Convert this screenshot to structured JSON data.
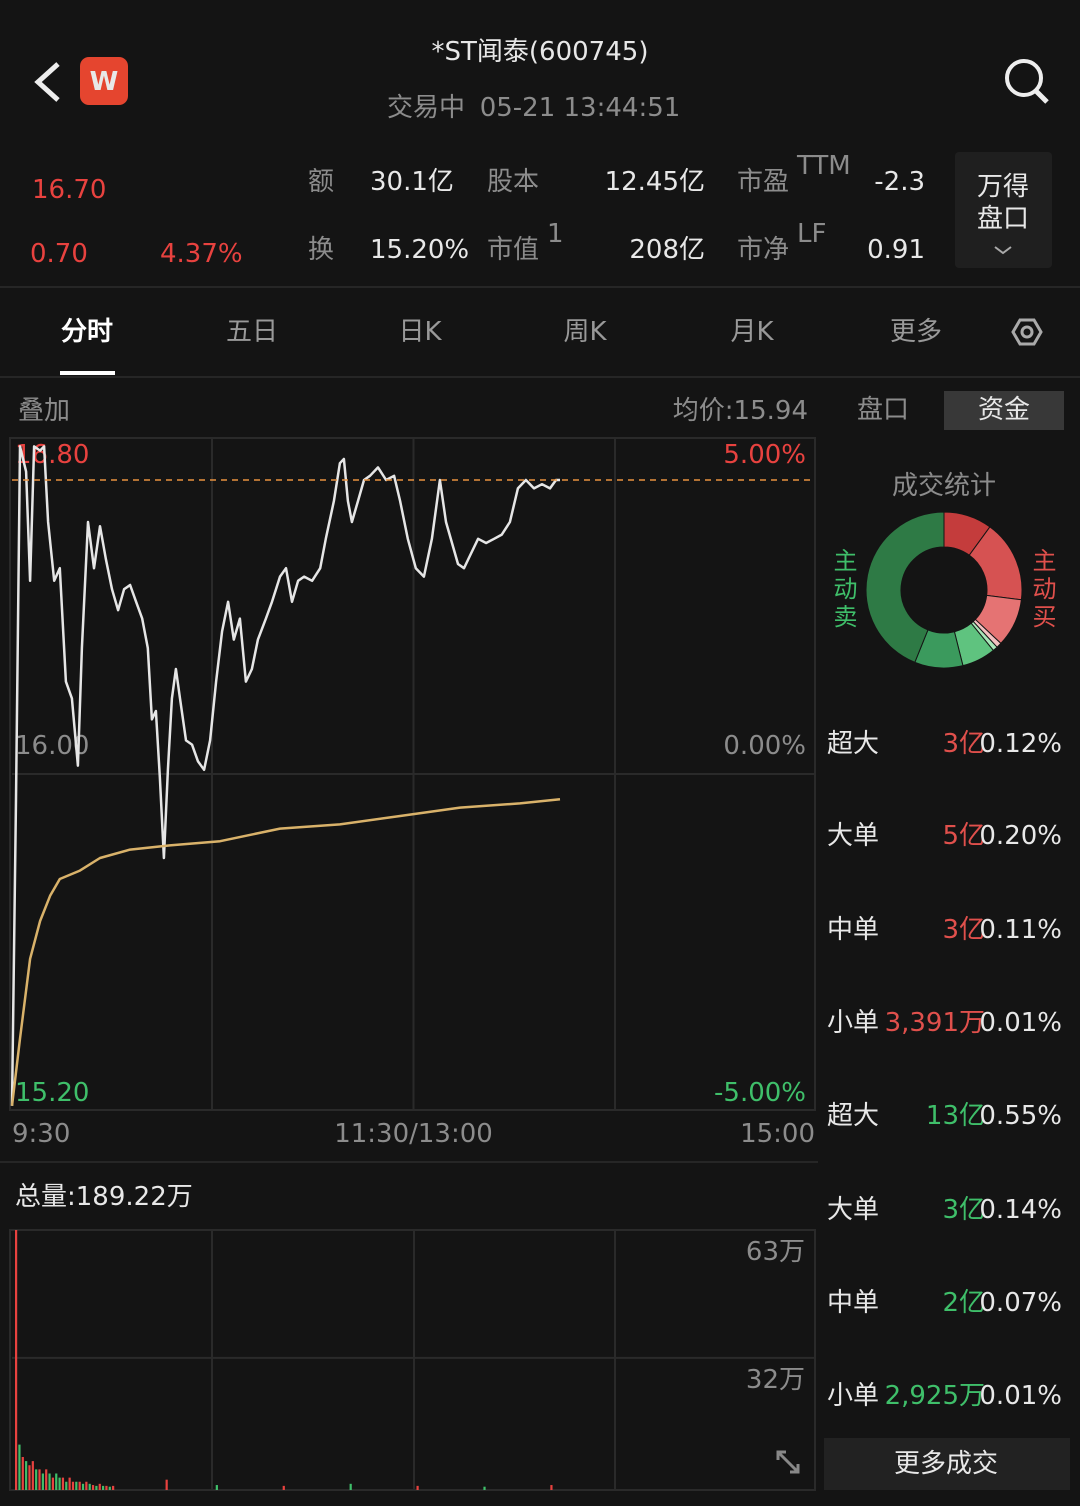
{
  "header": {
    "logo": "W",
    "title": "*ST闻泰(600745)",
    "status": "交易中",
    "time": "05-21 13:44:51"
  },
  "quote": {
    "price": "16.70",
    "change": "0.70",
    "change_pct": "4.37%",
    "stats": [
      {
        "label": "额",
        "value": "30.1亿"
      },
      {
        "label": "股本",
        "value": "12.45亿"
      },
      {
        "label": "市盈",
        "sup": "TTM",
        "value": "-2.3"
      },
      {
        "label": "换",
        "value": "15.20%"
      },
      {
        "label": "市值",
        "sup": "1",
        "value": "208亿"
      },
      {
        "label": "市净",
        "sup": "LF",
        "value": "0.91"
      }
    ],
    "wind_button": [
      "万得",
      "盘口"
    ]
  },
  "tabs": [
    "分时",
    "五日",
    "日K",
    "周K",
    "月K",
    "更多"
  ],
  "intraday": {
    "overlay": "叠加",
    "avg_label": "均价:15.94",
    "xlim": [
      0,
      240
    ],
    "ylim": [
      15.2,
      16.8
    ],
    "yticks": [
      {
        "value": 16.8,
        "label": "16.80"
      },
      {
        "value": 16,
        "label": "16.00"
      },
      {
        "value": 15.2,
        "label": "15.20"
      }
    ],
    "pct_labels": [
      "5.00%",
      "0.00%",
      "-5.00%"
    ],
    "xticks": [
      {
        "value": 0,
        "label": "9:30"
      },
      {
        "value": 120,
        "label": "11:30/13:00"
      },
      {
        "value": 240,
        "label": "15:00"
      }
    ],
    "series": [
      {
        "name": "price",
        "color": "#e6e6e6",
        "x": [
          0,
          1.2,
          2.4,
          4.2,
          5.4,
          6.6,
          8.4,
          9.6,
          10.8,
          12.6,
          14.3,
          16.1,
          17.9,
          19.7,
          20.9,
          22.7,
          24.5,
          26.3,
          28.1,
          29.9,
          31.7,
          33.5,
          35.3,
          37.1,
          38.9,
          40.6,
          41.8,
          43.0,
          44.2,
          45.4,
          46.6,
          47.8,
          49.0,
          50.2,
          52.0,
          53.8,
          55.6,
          57.4,
          59.2,
          61.0,
          62.8,
          64.6,
          66.3,
          68.1,
          69.9,
          71.7,
          73.5,
          75.9,
          77.7,
          80.1,
          81.9,
          83.7,
          85.5,
          87.3,
          89.7,
          92.1,
          93.8,
          96.2,
          98.0,
          99.2,
          100.4,
          101.6,
          103.4,
          105.2,
          107.0,
          109.4,
          111.8,
          114.2,
          116.0,
          118.3,
          120.7,
          123.1,
          125.5,
          127.9,
          129.7,
          131.5,
          133.3,
          135.1,
          136.9,
          139.3,
          141.7,
          144.1,
          146.4,
          148.8,
          151.2,
          153.6,
          156.0,
          158.4,
          160.8,
          162.6,
          163.8
        ],
        "values": [
          15.21,
          15.94,
          16.78,
          16.72,
          16.46,
          16.78,
          16.77,
          16.78,
          16.6,
          16.46,
          16.49,
          16.22,
          16.18,
          16.02,
          16.3,
          16.6,
          16.49,
          16.59,
          16.51,
          16.44,
          16.39,
          16.44,
          16.45,
          16.41,
          16.37,
          16.3,
          16.13,
          16.15,
          15.99,
          15.8,
          16.01,
          16.18,
          16.25,
          16.18,
          16.08,
          16.07,
          16.03,
          16.01,
          16.08,
          16.22,
          16.34,
          16.41,
          16.32,
          16.37,
          16.22,
          16.25,
          16.32,
          16.37,
          16.41,
          16.47,
          16.49,
          16.41,
          16.46,
          16.47,
          16.46,
          16.49,
          16.56,
          16.65,
          16.74,
          16.75,
          16.65,
          16.6,
          16.65,
          16.7,
          16.71,
          16.73,
          16.7,
          16.71,
          16.65,
          16.56,
          16.49,
          16.47,
          16.56,
          16.7,
          16.6,
          16.55,
          16.5,
          16.49,
          16.52,
          16.56,
          16.55,
          16.56,
          16.57,
          16.6,
          16.68,
          16.7,
          16.68,
          16.69,
          16.68,
          16.7,
          16.7
        ]
      },
      {
        "name": "avg",
        "color": "#d9b26a",
        "x": [
          0,
          2.4,
          5.4,
          8.4,
          11.4,
          14.3,
          20.3,
          26.3,
          35.3,
          47.2,
          62.2,
          80.1,
          98.0,
          116.0,
          133.9,
          151.8,
          163.8
        ],
        "values": [
          15.21,
          15.37,
          15.56,
          15.65,
          15.71,
          15.75,
          15.77,
          15.8,
          15.82,
          15.83,
          15.84,
          15.87,
          15.88,
          15.9,
          15.92,
          15.93,
          15.94
        ]
      }
    ]
  },
  "volume": {
    "total": "总量:189.22万",
    "ylim": [
      0,
      63
    ],
    "yticks": [
      {
        "value": 63,
        "label": "63万"
      },
      {
        "value": 32,
        "label": "32万"
      }
    ],
    "x": [
      0,
      1,
      2,
      3,
      4,
      5,
      6,
      7,
      8,
      9,
      10,
      11,
      12,
      13,
      14,
      15,
      16,
      17,
      18,
      19,
      20,
      21,
      22,
      23,
      24,
      25,
      26,
      27,
      28,
      29,
      45,
      60,
      80,
      100,
      120,
      140,
      160
    ],
    "values": [
      63,
      11,
      8,
      7,
      6,
      7,
      5,
      5,
      4,
      5,
      4,
      3,
      4,
      3,
      3,
      2,
      3,
      2,
      2,
      2,
      1.5,
      2,
      1.5,
      1.2,
      1,
      1.5,
      1,
      1,
      0.8,
      1,
      2.5,
      1.2,
      1,
      1.5,
      1,
      0.8,
      1.2
    ],
    "colors": [
      "#e8423f",
      "#3fbf6a",
      "#e8423f",
      "#3fbf6a",
      "#e8423f",
      "#e8423f",
      "#3fbf6a",
      "#e8423f",
      "#3fbf6a",
      "#e8423f",
      "#3fbf6a",
      "#e8423f",
      "#3fbf6a",
      "#3fbf6a",
      "#e8423f",
      "#3fbf6a",
      "#e8423f",
      "#e8423f",
      "#3fbf6a",
      "#e8423f",
      "#3fbf6a",
      "#e8423f",
      "#3fbf6a",
      "#e8423f",
      "#3fbf6a",
      "#e8423f",
      "#3fbf6a",
      "#e8423f",
      "#3fbf6a",
      "#e8423f",
      "#e8423f",
      "#3fbf6a",
      "#e8423f",
      "#3fbf6a",
      "#e8423f",
      "#3fbf6a",
      "#e8423f"
    ]
  },
  "side": {
    "tabs": [
      "盘口",
      "资金"
    ],
    "title": "成交统计",
    "sell_label": "主动卖",
    "buy_label": "主动买",
    "donut": [
      {
        "value": 10,
        "color": "#c43c3c"
      },
      {
        "value": 17,
        "color": "#d65252"
      },
      {
        "value": 10,
        "color": "#e57373"
      },
      {
        "value": 1.1,
        "color": "#f2c0c0"
      },
      {
        "value": 1,
        "color": "#a8e6b8"
      },
      {
        "value": 7,
        "color": "#5fc37f"
      },
      {
        "value": 10,
        "color": "#3b9a5d"
      },
      {
        "value": 43.9,
        "color": "#2e7a45"
      }
    ],
    "rows": [
      {
        "label": "超大",
        "amount": "3亿",
        "pct": "0.12%",
        "color": "#e0504c"
      },
      {
        "label": "大单",
        "amount": "5亿",
        "pct": "0.20%",
        "color": "#e0504c"
      },
      {
        "label": "中单",
        "amount": "3亿",
        "pct": "0.11%",
        "color": "#e0504c"
      },
      {
        "label": "小单",
        "amount": "3,391万",
        "pct": "0.01%",
        "color": "#e0504c"
      },
      {
        "label": "超大",
        "amount": "13亿",
        "pct": "0.55%",
        "color": "#3fbf6a"
      },
      {
        "label": "大单",
        "amount": "3亿",
        "pct": "0.14%",
        "color": "#3fbf6a"
      },
      {
        "label": "中单",
        "amount": "2亿",
        "pct": "0.07%",
        "color": "#3fbf6a"
      },
      {
        "label": "小单",
        "amount": "2,925万",
        "pct": "0.01%",
        "color": "#3fbf6a"
      }
    ],
    "more": "更多成交"
  }
}
